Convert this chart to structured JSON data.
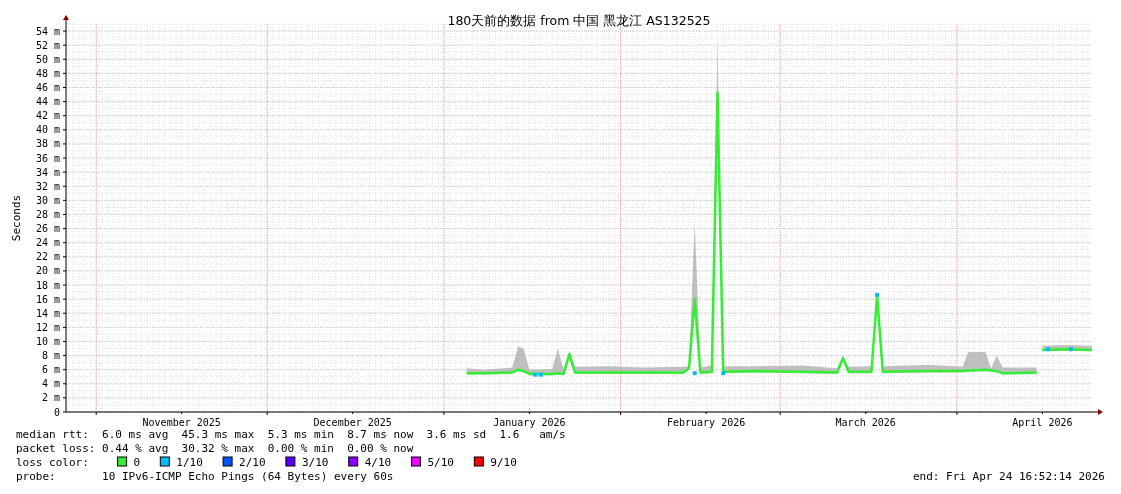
{
  "chart_data": {
    "type": "line",
    "title": "180天前的数据 from 中国 黑龙江 AS132525",
    "ylabel": "Seconds",
    "legend_title": "loss color:",
    "legend": "bottom",
    "grid": true,
    "xlim": [
      "2025-10-26T16:52",
      "2026-04-24T16:52"
    ],
    "xticks": [
      {
        "value": "2025-11-01",
        "label": null
      },
      {
        "value": "2025-11-16",
        "label": "November 2025"
      },
      {
        "value": "2025-12-01",
        "label": null
      },
      {
        "value": "2025-12-16",
        "label": "December 2025"
      },
      {
        "value": "2026-01-01",
        "label": null
      },
      {
        "value": "2026-01-16",
        "label": "January 2026"
      },
      {
        "value": "2026-02-01",
        "label": null
      },
      {
        "value": "2026-02-16",
        "label": "February 2026"
      },
      {
        "value": "2026-03-01",
        "label": null
      },
      {
        "value": "2026-03-16",
        "label": "March 2026"
      },
      {
        "value": "2026-04-01",
        "label": null
      },
      {
        "value": "2026-04-16",
        "label": "April 2026"
      }
    ],
    "ylim": [
      0,
      55
    ],
    "yticks": [
      0,
      {
        "value": 2,
        "label": "2 m"
      },
      {
        "value": 4,
        "label": "4 m"
      },
      {
        "value": 6,
        "label": "6 m"
      },
      {
        "value": 8,
        "label": "8 m"
      },
      {
        "value": 10,
        "label": "10 m"
      },
      {
        "value": 12,
        "label": "12 m"
      },
      {
        "value": 14,
        "label": "14 m"
      },
      {
        "value": 16,
        "label": "16 m"
      },
      {
        "value": 18,
        "label": "18 m"
      },
      {
        "value": 20,
        "label": "20 m"
      },
      {
        "value": 22,
        "label": "22 m"
      },
      {
        "value": 24,
        "label": "24 m"
      },
      {
        "value": 26,
        "label": "26 m"
      },
      {
        "value": 28,
        "label": "28 m"
      },
      {
        "value": 30,
        "label": "30 m"
      },
      {
        "value": 32,
        "label": "32 m"
      },
      {
        "value": 34,
        "label": "34 m"
      },
      {
        "value": 36,
        "label": "36 m"
      },
      {
        "value": 38,
        "label": "38 m"
      },
      {
        "value": 40,
        "label": "40 m"
      },
      {
        "value": 42,
        "label": "42 m"
      },
      {
        "value": 44,
        "label": "44 m"
      },
      {
        "value": 46,
        "label": "46 m"
      },
      {
        "value": 48,
        "label": "48 m"
      },
      {
        "value": 50,
        "label": "50 m"
      },
      {
        "value": 52,
        "label": "52 m"
      },
      {
        "value": 54,
        "label": "54 m"
      }
    ],
    "series": [
      {
        "name": "0",
        "color": "#33ee33",
        "x": [
          "2026-01-05",
          "2026-01-08",
          "2026-01-13",
          "2026-01-14",
          "2026-01-15",
          "2026-01-16",
          "2026-01-20",
          "2026-01-21",
          "2026-01-22",
          "2026-01-23",
          "2026-01-24",
          "2026-01-30",
          "2026-02-05",
          "2026-02-12",
          "2026-02-13",
          "2026-02-14",
          "2026-02-15",
          "2026-02-17",
          "2026-02-18",
          "2026-02-19",
          "2026-02-25",
          "2026-03-05",
          "2026-03-11",
          "2026-03-12",
          "2026-03-13",
          "2026-03-17",
          "2026-03-18",
          "2026-03-19",
          "2026-03-27",
          "2026-04-02",
          "2026-04-03",
          "2026-04-06",
          "2026-04-07",
          "2026-04-08",
          "2026-04-09",
          "2026-04-15",
          "2026-04-15T12:00",
          "2026-04-16",
          "2026-04-20",
          "2026-04-24T16:00"
        ],
        "values": [
          5.5,
          5.5,
          5.6,
          6.0,
          5.8,
          5.4,
          5.4,
          5.5,
          5.4,
          8.2,
          5.6,
          5.6,
          5.6,
          5.6,
          6.2,
          16.0,
          5.6,
          5.7,
          45.3,
          5.7,
          5.8,
          5.7,
          5.6,
          7.6,
          5.7,
          5.7,
          16.5,
          5.7,
          5.8,
          5.8,
          5.9,
          6.0,
          5.9,
          5.8,
          5.5,
          5.6,
          null,
          8.8,
          8.9,
          8.8
        ],
        "lower": [
          5.3,
          5.3,
          5.4,
          5.8,
          5.6,
          5.2,
          5.2,
          5.3,
          5.2,
          8.0,
          5.4,
          5.4,
          5.4,
          5.4,
          6.0,
          15.8,
          5.4,
          5.5,
          45.1,
          5.5,
          5.6,
          5.5,
          5.4,
          7.4,
          5.5,
          5.5,
          16.3,
          5.5,
          5.6,
          5.6,
          5.7,
          5.8,
          5.7,
          5.6,
          5.3,
          5.4,
          null,
          8.6,
          8.7,
          8.6
        ],
        "upper": [
          6.2,
          6.0,
          6.3,
          9.3,
          9.0,
          6.0,
          6.1,
          9.0,
          6.0,
          8.6,
          6.4,
          6.5,
          6.3,
          6.4,
          6.5,
          27.0,
          6.3,
          6.6,
          53.0,
          6.5,
          6.5,
          6.6,
          6.2,
          8.0,
          6.4,
          6.5,
          17.0,
          6.5,
          6.7,
          6.4,
          8.5,
          8.5,
          6.2,
          8.0,
          6.3,
          6.3,
          null,
          9.4,
          9.5,
          9.4
        ]
      },
      {
        "name": "1/10",
        "color": "#00bbff",
        "type": "scatter",
        "x": [
          "2026-01-17",
          "2026-01-18",
          "2026-02-14",
          "2026-02-19",
          "2026-03-18",
          "2026-04-17",
          "2026-04-21"
        ],
        "values": [
          5.3,
          5.3,
          5.5,
          5.5,
          16.6,
          8.9,
          8.9
        ]
      },
      {
        "name": "2/10",
        "color": "#0055ff",
        "type": "scatter"
      },
      {
        "name": "3/10",
        "color": "#5500ff",
        "type": "scatter"
      },
      {
        "name": "4/10",
        "color": "#8800ff",
        "type": "scatter"
      },
      {
        "name": "5/10",
        "color": "#ee00ff",
        "type": "scatter"
      },
      {
        "name": "9/10",
        "color": "#ff0000",
        "type": "scatter"
      }
    ],
    "annotations": [
      "median rtt:  6.0 ms avg  45.3 ms max  5.3 ms min  8.7 ms now  3.6 ms sd  1.6   am/s",
      "packet loss: 0.44 % avg  30.32 % max  0.00 % min  0.00 % now",
      "probe:       10 IPv6-ICMP Echo Pings (64 Bytes) every 60s",
      "end: Fri Apr 24 16:52:14 2026"
    ]
  }
}
